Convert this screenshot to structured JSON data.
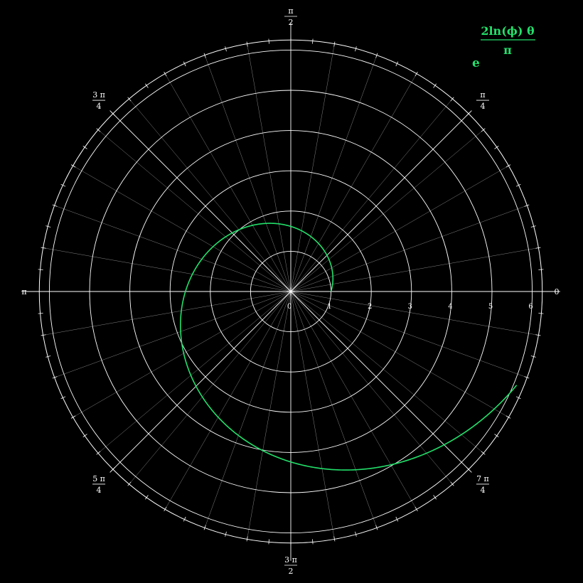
{
  "chart_data": {
    "type": "line",
    "coordinate_system": "polar",
    "equation": {
      "base": "e",
      "numerator": "2ln(ϕ) θ",
      "denominator": "π"
    },
    "r_ticks": [
      "0",
      "1",
      "2",
      "3",
      "4",
      "5",
      "6"
    ],
    "rlim": [
      0,
      6.25
    ],
    "theta_labels": [
      {
        "angle_deg": 0,
        "num": "0",
        "den": ""
      },
      {
        "angle_deg": 45,
        "num": "π",
        "den": "4"
      },
      {
        "angle_deg": 90,
        "num": "π",
        "den": "2"
      },
      {
        "angle_deg": 135,
        "num": "3 π",
        "den": "4"
      },
      {
        "angle_deg": 180,
        "num": "π",
        "den": ""
      },
      {
        "angle_deg": 225,
        "num": "5 π",
        "den": "4"
      },
      {
        "angle_deg": 270,
        "num": "3 π",
        "den": "2"
      },
      {
        "angle_deg": 315,
        "num": "7 π",
        "den": "4"
      }
    ],
    "theta_range": [
      0,
      5.89
    ],
    "grid": true,
    "series": [
      {
        "color": "#22e06a",
        "r_formula": "exp(2*ln(phi)*theta/pi)",
        "phi": 1.618
      }
    ],
    "colors": {
      "background": "#000000",
      "grid": "#ffffff",
      "curve": "#22e06a"
    }
  }
}
